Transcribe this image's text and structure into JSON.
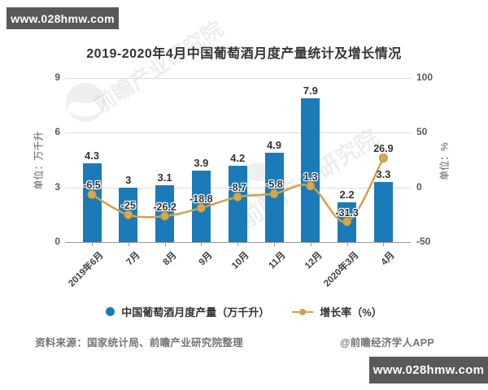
{
  "watermarks": {
    "site": "www.028hmw.com",
    "brand": "前瞻产业研究院"
  },
  "title": "2019-2020年4月中国葡萄酒月度产量统计及增长情况",
  "chart_data": {
    "type": "bar",
    "categories": [
      "2019年6月",
      "7月",
      "8月",
      "9月",
      "10月",
      "11月",
      "12月",
      "2020年3月",
      "4月"
    ],
    "series": [
      {
        "name": "中国葡萄酒月度产量（万千升）",
        "type": "bar",
        "axis": "left",
        "color": "#1b7ab8",
        "values": [
          4.3,
          3,
          3.1,
          3.9,
          4.2,
          4.9,
          7.9,
          2.2,
          3.3
        ]
      },
      {
        "name": "增长率（%）",
        "type": "line",
        "axis": "right",
        "color": "#cfa14f",
        "marker_color": "#d6a94f",
        "marker_stroke": "#b8913f",
        "values": [
          -6.5,
          -25,
          -26.2,
          -18.8,
          -8.7,
          -5.8,
          1.3,
          -31.3,
          26.9
        ]
      }
    ],
    "left_axis": {
      "name": "单位：万千升",
      "ticks": [
        0,
        3,
        6,
        9
      ],
      "range": [
        0,
        9
      ]
    },
    "right_axis": {
      "name": "单位：%",
      "ticks": [
        -50,
        0,
        50,
        100
      ],
      "range": [
        -50,
        100
      ]
    },
    "grid": true,
    "legend_position": "bottom"
  },
  "legend": [
    {
      "label": "中国葡萄酒月度产量（万千升）",
      "color": "#1b7ab8",
      "marker": "circle"
    },
    {
      "label": "增长率（%）",
      "color": "#cfa14f",
      "marker": "line-dot"
    }
  ],
  "footer": {
    "source": "资料来源：国家统计局、前瞻产业研究院整理",
    "credit": "@前瞻经济学人APP"
  }
}
